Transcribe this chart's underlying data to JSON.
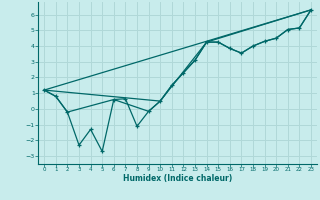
{
  "title": "",
  "xlabel": "Humidex (Indice chaleur)",
  "background_color": "#c8ecec",
  "grid_color": "#b0d8d8",
  "line_color": "#006868",
  "xlim": [
    -0.5,
    23.5
  ],
  "ylim": [
    -3.5,
    6.8
  ],
  "yticks": [
    -3,
    -2,
    -1,
    0,
    1,
    2,
    3,
    4,
    5,
    6
  ],
  "xticks": [
    0,
    1,
    2,
    3,
    4,
    5,
    6,
    7,
    8,
    9,
    10,
    11,
    12,
    13,
    14,
    15,
    16,
    17,
    18,
    19,
    20,
    21,
    22,
    23
  ],
  "line1_x": [
    0,
    1,
    2,
    3,
    4,
    5,
    6,
    7,
    8,
    9,
    10,
    11,
    12,
    13,
    14,
    15,
    16,
    17,
    18,
    19,
    20,
    21,
    22,
    23
  ],
  "line1_y": [
    1.2,
    0.8,
    -0.2,
    -2.3,
    -1.3,
    -2.7,
    0.6,
    0.65,
    -1.1,
    -0.15,
    0.5,
    1.5,
    2.3,
    3.1,
    4.25,
    4.25,
    3.85,
    3.55,
    4.0,
    4.3,
    4.5,
    5.05,
    5.15,
    6.3
  ],
  "line2_x": [
    0,
    1,
    2,
    6,
    9,
    10,
    11,
    12,
    13,
    14,
    15,
    16,
    17,
    18,
    19,
    20,
    21,
    22,
    23
  ],
  "line2_y": [
    1.2,
    0.8,
    -0.2,
    0.6,
    -0.15,
    0.5,
    1.5,
    2.3,
    3.1,
    4.25,
    4.25,
    3.85,
    3.55,
    4.0,
    4.3,
    4.5,
    5.05,
    5.15,
    6.3
  ],
  "line3_x": [
    0,
    23
  ],
  "line3_y": [
    1.2,
    6.3
  ],
  "line4_x": [
    0,
    10,
    14,
    23
  ],
  "line4_y": [
    1.2,
    0.5,
    4.25,
    6.3
  ],
  "figsize": [
    3.2,
    2.0
  ],
  "dpi": 100
}
